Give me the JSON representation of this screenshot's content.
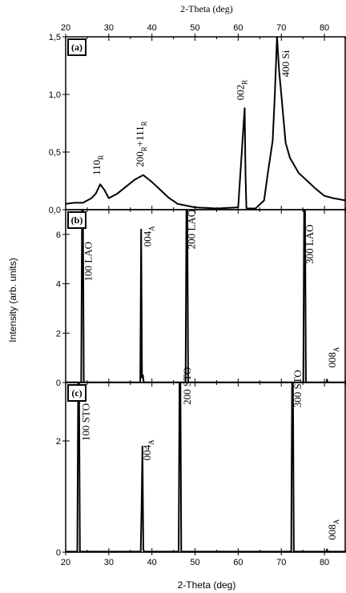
{
  "figure": {
    "top_axis_label": "2-Theta (deg)",
    "bottom_axis_label": "2-Theta (deg)",
    "y_axis_label": "Intensity (arb. units)"
  },
  "chart_data": [
    {
      "type": "line",
      "panel": "(a)",
      "xlim": [
        20,
        85
      ],
      "ylim": [
        0,
        1.5
      ],
      "x_ticks": [
        20,
        30,
        40,
        50,
        60,
        70,
        80
      ],
      "y_ticks": [
        "0,0",
        "0,5",
        "1,0",
        "1,5"
      ],
      "y_tick_values": [
        0,
        0.5,
        1.0,
        1.5
      ],
      "series": [
        {
          "x": [
            20,
            22,
            24,
            26,
            27,
            28,
            29,
            30,
            32,
            34,
            36,
            37,
            38,
            39,
            40,
            42,
            44,
            46,
            50,
            55,
            60,
            61.5,
            61.7,
            61.9,
            62,
            64,
            66,
            67,
            68,
            68.5,
            69,
            69.5,
            70,
            71,
            72,
            74,
            76,
            78,
            80,
            82,
            85
          ],
          "y": [
            0.05,
            0.06,
            0.06,
            0.1,
            0.14,
            0.22,
            0.17,
            0.1,
            0.14,
            0.2,
            0.26,
            0.28,
            0.3,
            0.27,
            0.24,
            0.17,
            0.1,
            0.05,
            0.02,
            0.01,
            0.02,
            0.88,
            0.3,
            0.02,
            0.01,
            0.01,
            0.08,
            0.35,
            0.6,
            1.0,
            1.5,
            1.2,
            1.0,
            0.58,
            0.45,
            0.32,
            0.25,
            0.18,
            0.12,
            0.1,
            0.08
          ]
        }
      ],
      "annotations": [
        {
          "text": "110",
          "sub": "R",
          "x": 28,
          "y": 0.3
        },
        {
          "text": "200",
          "sub": "R",
          "text2": "+111",
          "sub2": "R",
          "x": 38,
          "y": 0.37
        },
        {
          "text": "002",
          "sub": "R",
          "x": 61.3,
          "y": 0.95
        },
        {
          "text": "400 Si",
          "sub": "",
          "x": 71.8,
          "y": 1.15
        }
      ]
    },
    {
      "type": "line",
      "panel": "(b)",
      "xlim": [
        20,
        85
      ],
      "ylim": [
        0,
        7
      ],
      "x_ticks": [
        20,
        30,
        40,
        50,
        60,
        70,
        80
      ],
      "y_ticks": [
        "0",
        "2",
        "4",
        "6"
      ],
      "y_tick_values": [
        0,
        2,
        4,
        6
      ],
      "series": [
        {
          "x": [
            20,
            23.6,
            23.8,
            24,
            24.2,
            37.3,
            37.5,
            37.7,
            37.9,
            38.1,
            47.8,
            48,
            48.2,
            48.4,
            75.1,
            75.3,
            75.5,
            75.7,
            80.5,
            80.6,
            80.7,
            85
          ],
          "y": [
            0.01,
            0.01,
            7.0,
            7.0,
            0.01,
            0.01,
            6.2,
            0.2,
            0.3,
            0.01,
            0.01,
            7.0,
            7.0,
            0.01,
            0.01,
            7.0,
            7.0,
            0.01,
            0.01,
            0.12,
            0.01,
            0.01
          ]
        }
      ],
      "annotations": [
        {
          "text": "100 LAO",
          "sub": "",
          "x": 26,
          "y": 4.1
        },
        {
          "text": "004",
          "sub": "A",
          "x": 39.8,
          "y": 5.5
        },
        {
          "text": "200 LAO",
          "sub": "",
          "x": 50,
          "y": 5.4
        },
        {
          "text": "300 LAO",
          "sub": "",
          "x": 77.4,
          "y": 4.8
        },
        {
          "text": "008",
          "sub": "A",
          "x": 82.6,
          "y": 0.6
        }
      ]
    },
    {
      "type": "line",
      "panel": "(c)",
      "xlim": [
        20,
        85
      ],
      "ylim": [
        0,
        3.05
      ],
      "x_ticks": [
        20,
        30,
        40,
        50,
        60,
        70,
        80
      ],
      "y_ticks": [
        "0",
        "2"
      ],
      "y_tick_values": [
        0,
        2
      ],
      "series": [
        {
          "x": [
            20,
            22.7,
            22.9,
            23.1,
            23.3,
            37.4,
            37.6,
            37.8,
            38,
            38.2,
            46.2,
            46.4,
            46.6,
            46.8,
            72.3,
            72.5,
            72.7,
            72.9,
            80.5,
            80.6,
            80.7,
            85
          ],
          "y": [
            0.01,
            0.01,
            3.05,
            3.05,
            0.01,
            0.01,
            0.8,
            1.9,
            0.05,
            0.01,
            0.01,
            3.05,
            3.05,
            0.01,
            0.01,
            3.05,
            3.05,
            0.01,
            0.01,
            0.05,
            0.01,
            0.01
          ]
        }
      ],
      "annotations": [
        {
          "text": "100 STO",
          "sub": "",
          "x": 25.5,
          "y": 2.0
        },
        {
          "text": "004",
          "sub": "A",
          "x": 39.7,
          "y": 1.65
        },
        {
          "text": "200 STO",
          "sub": "",
          "x": 49,
          "y": 2.65
        },
        {
          "text": "300 STO",
          "sub": "",
          "x": 74.6,
          "y": 2.6
        },
        {
          "text": "008",
          "sub": "A",
          "x": 82.6,
          "y": 0.22
        }
      ]
    }
  ]
}
